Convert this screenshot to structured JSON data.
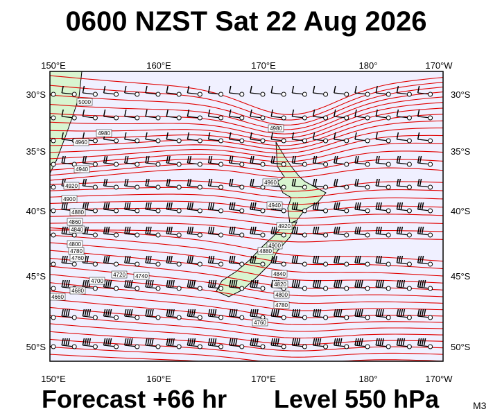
{
  "header": {
    "title": "0600 NZST Sat 22 Aug 2026"
  },
  "axes": {
    "lon_labels": [
      "150°E",
      "160°E",
      "170°E",
      "180°",
      "170°W"
    ],
    "lat_labels": [
      "30°S",
      "35°S",
      "40°S",
      "45°S",
      "50°S"
    ]
  },
  "contour_labels": [
    "5000",
    "4980",
    "4960",
    "4940",
    "4920",
    "4900",
    "4880",
    "4860",
    "4840",
    "4800",
    "4780",
    "4760",
    "4700",
    "4720",
    "4740",
    "4680",
    "4660",
    "4980",
    "4960",
    "4940",
    "4920",
    "4900",
    "4880",
    "4840",
    "4820",
    "4800",
    "4780",
    "4760"
  ],
  "footer": {
    "forecast": "Forecast +66 hr",
    "level": "Level 550 hPa",
    "code": "M3"
  }
}
